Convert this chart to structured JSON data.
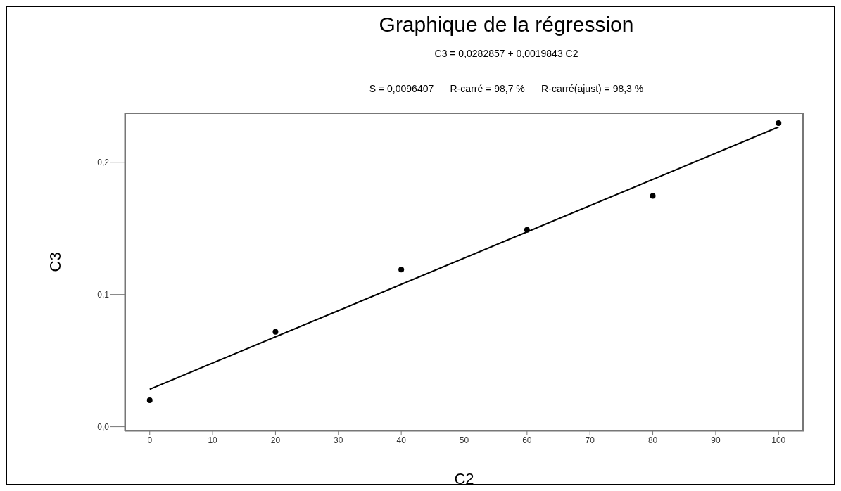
{
  "chart_data": {
    "type": "scatter",
    "title": "Graphique de la régression",
    "annotations": [
      "C3 = 0,0282857 + 0,0019843 C2",
      "S = 0,0096407      R-carré = 98,7 %      R-carré(ajust) = 98,3 %"
    ],
    "xlabel": "C2",
    "ylabel": "C3",
    "xlim": [
      -4,
      104
    ],
    "xticks": [
      0,
      10,
      20,
      30,
      40,
      50,
      60,
      70,
      80,
      90,
      100
    ],
    "ylim": [
      -0.0034,
      0.2376
    ],
    "yticks": [
      {
        "value": 0,
        "label": "0,0"
      },
      {
        "value": 0.1,
        "label": "0,1"
      },
      {
        "value": 0.2,
        "label": "0,2"
      }
    ],
    "x": [
      0,
      20,
      40,
      60,
      80,
      100
    ],
    "marker": "circle",
    "series": [
      {
        "color": "#000000",
        "values": [
          0.02,
          0.0718,
          0.1188,
          0.1489,
          0.1745,
          0.2296
        ]
      },
      {
        "type": "line",
        "color": "#000000",
        "x": [
          0,
          100
        ],
        "values": [
          0.0283,
          0.2267
        ],
        "marker": "none",
        "line_style": "solid"
      }
    ]
  }
}
